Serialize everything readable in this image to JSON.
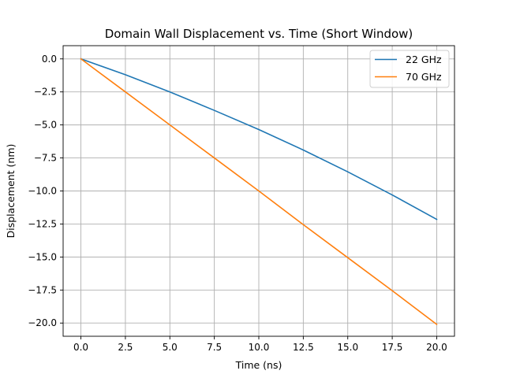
{
  "chart_data": {
    "type": "line",
    "title": "Domain Wall Displacement vs. Time (Short Window)",
    "xlabel": "Time (ns)",
    "ylabel": "Displacement (nm)",
    "xlim": [
      -1.0,
      21.0
    ],
    "ylim": [
      -21.0,
      1.0
    ],
    "xticks": [
      0.0,
      2.5,
      5.0,
      7.5,
      10.0,
      12.5,
      15.0,
      17.5,
      20.0
    ],
    "xtick_labels": [
      "0.0",
      "2.5",
      "5.0",
      "7.5",
      "10.0",
      "12.5",
      "15.0",
      "17.5",
      "20.0"
    ],
    "yticks": [
      0.0,
      -2.5,
      -5.0,
      -7.5,
      -10.0,
      -12.5,
      -15.0,
      -17.5,
      -20.0
    ],
    "ytick_labels": [
      "0.0",
      "−2.5",
      "−5.0",
      "−7.5",
      "−10.0",
      "−12.5",
      "−15.0",
      "−17.5",
      "−20.0"
    ],
    "grid": true,
    "legend_position": "top-right",
    "series": [
      {
        "name": "22 GHz",
        "color": "#1f77b4",
        "x": [
          0,
          2.5,
          5,
          7.5,
          10,
          12.5,
          15,
          17.5,
          20
        ],
        "y": [
          0,
          -1.2,
          -2.5,
          -3.9,
          -5.35,
          -6.9,
          -8.55,
          -10.3,
          -12.15
        ]
      },
      {
        "name": "70 GHz",
        "color": "#ff7f0e",
        "x": [
          0,
          2.5,
          5,
          7.5,
          10,
          12.5,
          15,
          17.5,
          20
        ],
        "y": [
          0,
          -2.5,
          -5.0,
          -7.5,
          -10.0,
          -12.55,
          -15.05,
          -17.55,
          -20.1
        ]
      }
    ]
  }
}
